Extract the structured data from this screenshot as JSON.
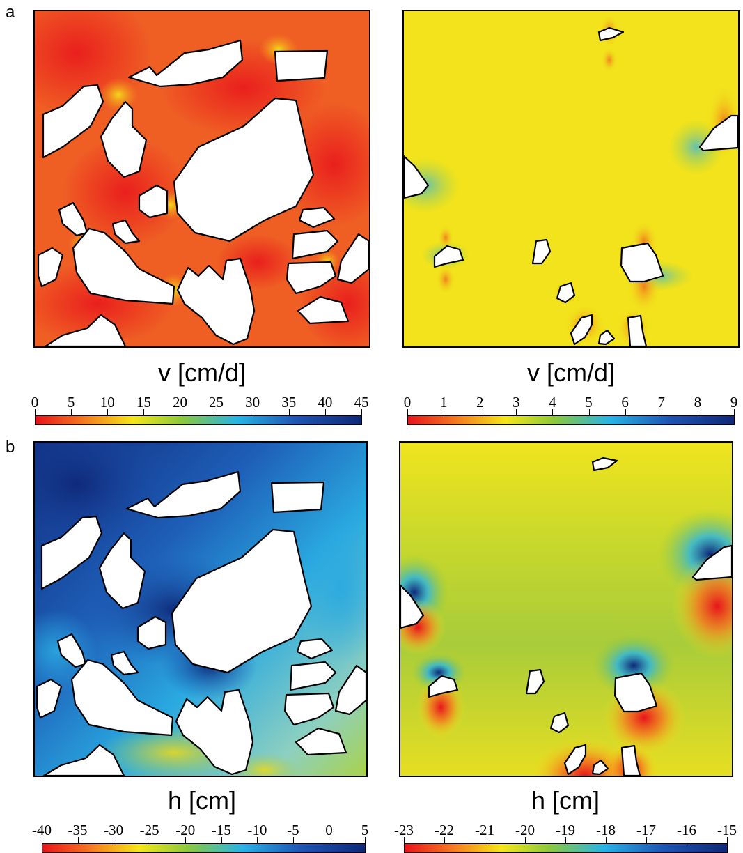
{
  "panel_letters": {
    "a": "a",
    "b": "b"
  },
  "panels": {
    "a_left": {
      "variable_label": "v [cm/d]",
      "colorbar_ticks": [
        "0",
        "5",
        "10",
        "15",
        "20",
        "25",
        "30",
        "35",
        "40",
        "45"
      ]
    },
    "a_right": {
      "variable_label": "v [cm/d]",
      "colorbar_ticks": [
        "0",
        "1",
        "2",
        "3",
        "4",
        "5",
        "6",
        "7",
        "8",
        "9"
      ]
    },
    "b_left": {
      "variable_label": "h [cm]",
      "colorbar_ticks": [
        "-40",
        "-35",
        "-30",
        "-25",
        "-20",
        "-15",
        "-10",
        "-5",
        "0",
        "5"
      ]
    },
    "b_right": {
      "variable_label": "h [cm]",
      "colorbar_ticks": [
        "-23",
        "-22",
        "-21",
        "-20",
        "-19",
        "-18",
        "-17",
        "-16",
        "-15"
      ]
    }
  },
  "colormap": [
    "#e8141c",
    "#f57a1f",
    "#f5e61a",
    "#8cc83c",
    "#27b4e6",
    "#1e55b4",
    "#0f2878"
  ],
  "field_colors": {
    "a_left_base": "#ee5a24",
    "a_right_base": "#f2e31c",
    "b_left_base": "#2aa9e0",
    "b_right_base": "#b9d132"
  }
}
